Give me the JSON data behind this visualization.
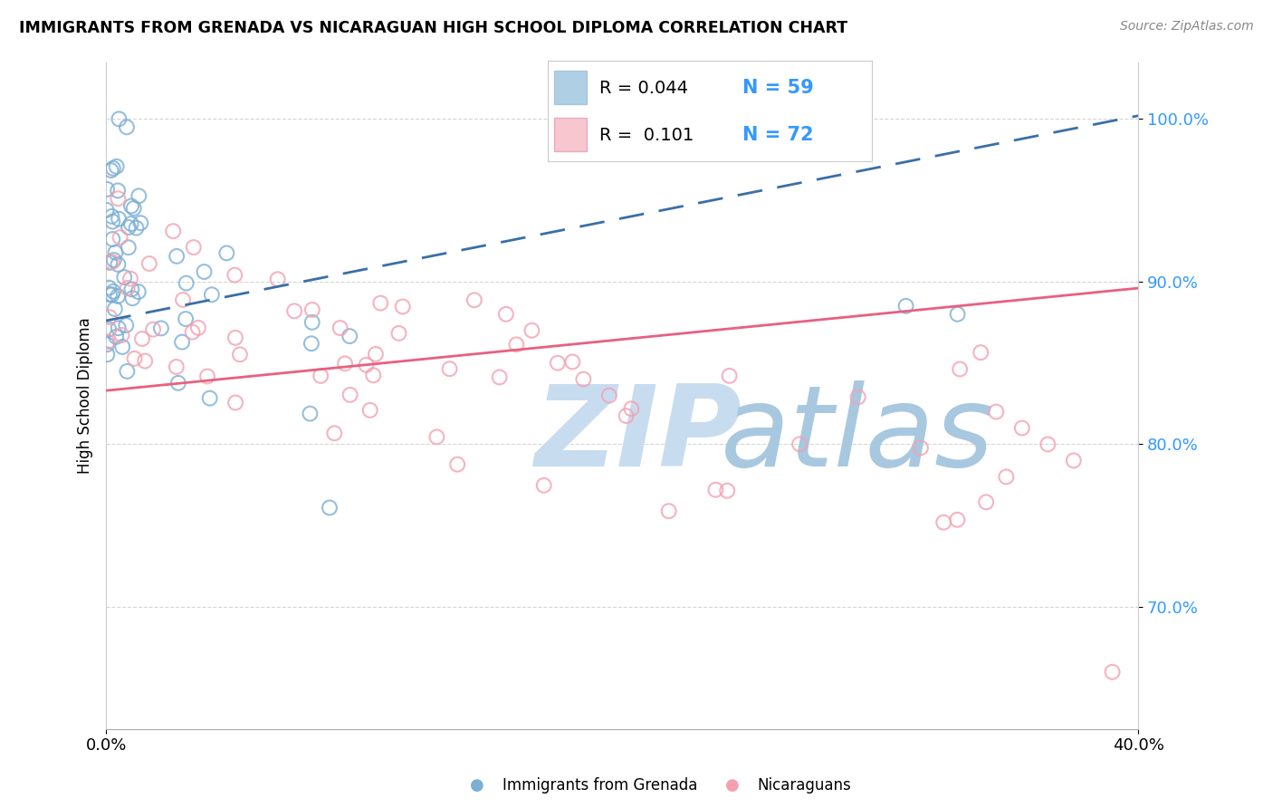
{
  "title": "IMMIGRANTS FROM GRENADA VS NICARAGUAN HIGH SCHOOL DIPLOMA CORRELATION CHART",
  "source_text": "Source: ZipAtlas.com",
  "ylabel": "High School Diploma",
  "y_tick_labels": [
    "70.0%",
    "80.0%",
    "90.0%",
    "100.0%"
  ],
  "y_tick_values": [
    0.7,
    0.8,
    0.9,
    1.0
  ],
  "x_range": [
    0.0,
    0.4
  ],
  "y_range": [
    0.625,
    1.035
  ],
  "color_blue": "#7BAFD4",
  "color_pink": "#F4A0B0",
  "color_blue_line": "#3A6FA8",
  "color_pink_line": "#E86080",
  "watermark_text": "ZIPatlas",
  "watermark_color": "#D8E8F4",
  "legend_color_text": "#3399FF",
  "legend_r1": "R = 0.044",
  "legend_n1": "N = 59",
  "legend_r2": "R =  0.101",
  "legend_n2": "N = 72",
  "bottom_label1": "Immigrants from Grenada",
  "bottom_label2": "Nicaraguans"
}
